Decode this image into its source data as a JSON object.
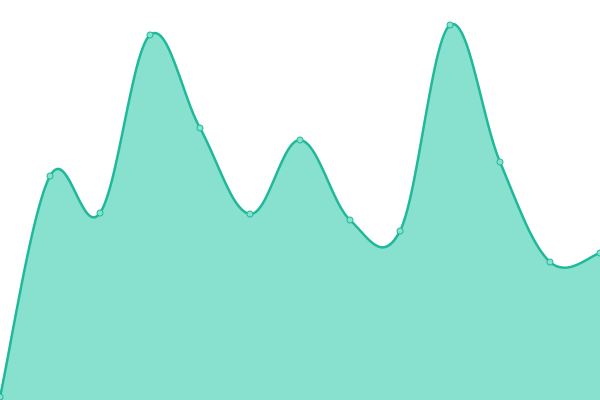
{
  "chart_data": {
    "type": "area",
    "categories": [
      null,
      null,
      null,
      null,
      null,
      null,
      null,
      null,
      null,
      null,
      null,
      null,
      null
    ],
    "values": [
      3,
      224,
      187,
      365,
      272,
      186,
      260,
      180,
      169,
      375,
      238,
      138,
      147
    ],
    "ylim": [
      0,
      400
    ],
    "color": "#1fb99a",
    "fill": "#88e0cf"
  }
}
